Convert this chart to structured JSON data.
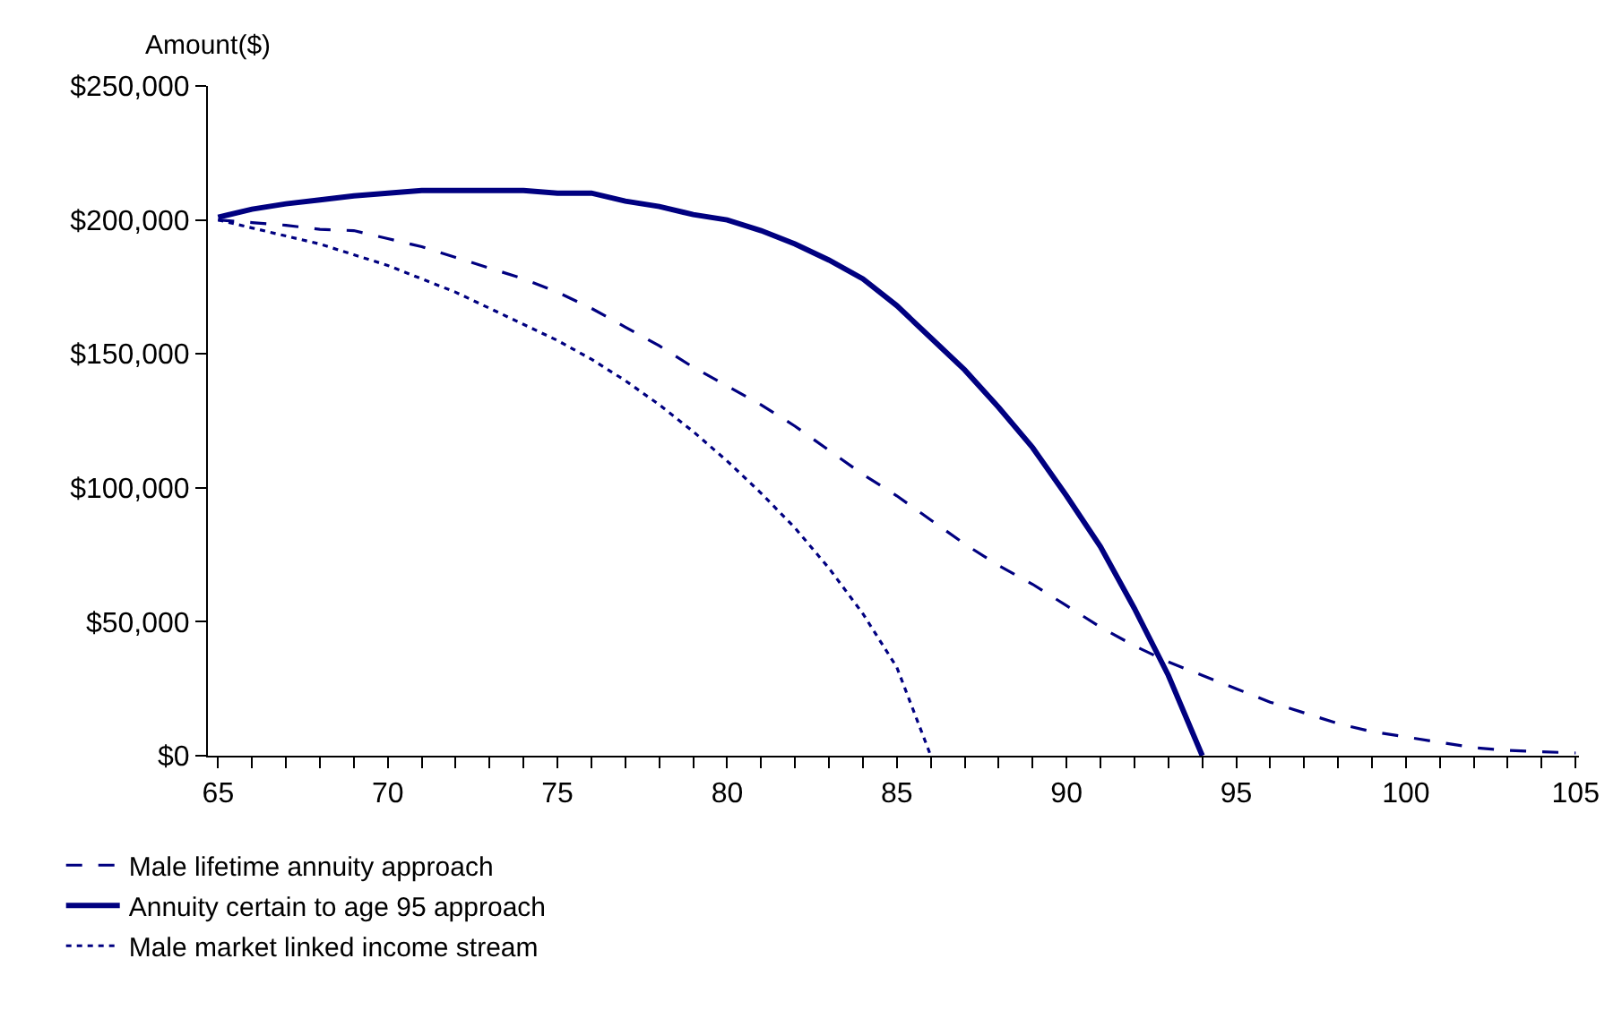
{
  "chart_data": {
    "type": "line",
    "ylabel": "Amount($)",
    "x": [
      65,
      66,
      67,
      68,
      69,
      70,
      71,
      72,
      73,
      74,
      75,
      76,
      77,
      78,
      79,
      80,
      81,
      82,
      83,
      84,
      85,
      86,
      87,
      88,
      89,
      90,
      91,
      92,
      93,
      94,
      95,
      96,
      97,
      98,
      99,
      100,
      101,
      102,
      103,
      104,
      105
    ],
    "series": [
      {
        "name": "Male lifetime annuity approach",
        "color": "#000080",
        "line_style": "dashed",
        "values": [
          200000,
          199000,
          198000,
          196500,
          196000,
          193000,
          190000,
          186000,
          182000,
          178000,
          173000,
          167000,
          160000,
          153000,
          145000,
          138000,
          131000,
          123000,
          114000,
          105000,
          97000,
          88000,
          79000,
          71000,
          64000,
          56000,
          48000,
          41000,
          35000,
          30000,
          25000,
          20000,
          16000,
          12000,
          9000,
          7000,
          5000,
          3000,
          2000,
          1500,
          1000
        ]
      },
      {
        "name": "Annuity certain to age 95 approach",
        "color": "#000080",
        "line_style": "solid",
        "values": [
          201000,
          204000,
          206000,
          207500,
          209000,
          210000,
          211000,
          211000,
          211000,
          211000,
          210000,
          210000,
          207000,
          205000,
          202000,
          200000,
          196000,
          191000,
          185000,
          178000,
          168000,
          156000,
          144000,
          130000,
          115000,
          97000,
          78000,
          55000,
          30000,
          0,
          null,
          null,
          null,
          null,
          null,
          null,
          null,
          null,
          null,
          null,
          null
        ]
      },
      {
        "name": "Male market linked income stream",
        "color": "#000080",
        "line_style": "dotted",
        "values": [
          200000,
          197000,
          194000,
          191000,
          187000,
          183000,
          178000,
          173000,
          167000,
          161000,
          155000,
          148000,
          140000,
          131000,
          121000,
          110000,
          98000,
          85000,
          70000,
          53000,
          33000,
          0,
          null,
          null,
          null,
          null,
          null,
          null,
          null,
          null,
          null,
          null,
          null,
          null,
          null,
          null,
          null,
          null,
          null,
          null,
          null
        ]
      }
    ],
    "xlim": [
      64.7,
      105.1
    ],
    "xticks": [
      65,
      {
        "value": 66,
        "label": null
      },
      {
        "value": 67,
        "label": null
      },
      {
        "value": 68,
        "label": null
      },
      {
        "value": 69,
        "label": null
      },
      70,
      {
        "value": 71,
        "label": null
      },
      {
        "value": 72,
        "label": null
      },
      {
        "value": 73,
        "label": null
      },
      {
        "value": 74,
        "label": null
      },
      75,
      {
        "value": 76,
        "label": null
      },
      {
        "value": 77,
        "label": null
      },
      {
        "value": 78,
        "label": null
      },
      {
        "value": 79,
        "label": null
      },
      80,
      {
        "value": 81,
        "label": null
      },
      {
        "value": 82,
        "label": null
      },
      {
        "value": 83,
        "label": null
      },
      {
        "value": 84,
        "label": null
      },
      85,
      {
        "value": 86,
        "label": null
      },
      {
        "value": 87,
        "label": null
      },
      {
        "value": 88,
        "label": null
      },
      {
        "value": 89,
        "label": null
      },
      90,
      {
        "value": 91,
        "label": null
      },
      {
        "value": 92,
        "label": null
      },
      {
        "value": 93,
        "label": null
      },
      {
        "value": 94,
        "label": null
      },
      95,
      {
        "value": 96,
        "label": null
      },
      {
        "value": 97,
        "label": null
      },
      {
        "value": 98,
        "label": null
      },
      {
        "value": 99,
        "label": null
      },
      100,
      {
        "value": 101,
        "label": null
      },
      {
        "value": 102,
        "label": null
      },
      {
        "value": 103,
        "label": null
      },
      {
        "value": 104,
        "label": null
      },
      105
    ],
    "ylim": [
      0,
      250000
    ],
    "yticks": [
      {
        "value": 0,
        "label": "$0"
      },
      {
        "value": 50000,
        "label": "$50,000"
      },
      {
        "value": 100000,
        "label": "$100,000"
      },
      {
        "value": 150000,
        "label": "$150,000"
      },
      {
        "value": 200000,
        "label": "$200,000"
      },
      {
        "value": 250000,
        "label": "$250,000"
      }
    ],
    "legend": "bottom",
    "marker": "none"
  }
}
